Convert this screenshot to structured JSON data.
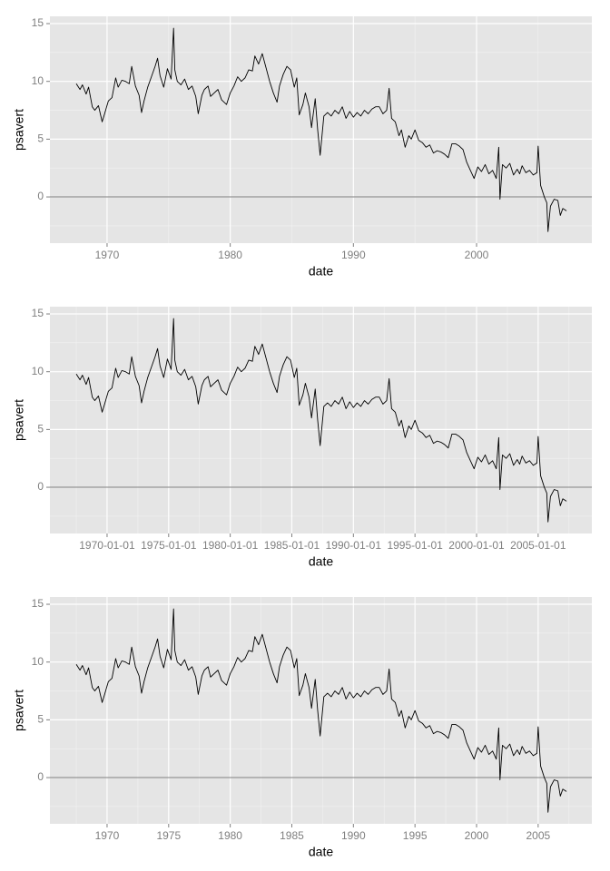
{
  "chart_data": [
    {
      "type": "line",
      "xlabel": "date",
      "ylabel": "psavert",
      "xlim": [
        1965.36,
        2009.36
      ],
      "ylim": [
        -4,
        15.63
      ],
      "xticks": [
        1970,
        1980,
        1990,
        2000
      ],
      "yticks": [
        0,
        5,
        10,
        15
      ],
      "grid": true,
      "hline": 0,
      "series": [
        {
          "name": "psavert",
          "color": "#000000",
          "x": [
            1967.5,
            1967.8,
            1968.0,
            1968.3,
            1968.5,
            1968.8,
            1969.0,
            1969.3,
            1969.6,
            1969.8,
            1970.1,
            1970.4,
            1970.7,
            1970.9,
            1971.2,
            1971.5,
            1971.8,
            1972.0,
            1972.3,
            1972.6,
            1972.8,
            1973.0,
            1973.3,
            1973.6,
            1973.9,
            1974.1,
            1974.3,
            1974.6,
            1974.9,
            1975.2,
            1975.4,
            1975.5,
            1975.7,
            1976.0,
            1976.3,
            1976.6,
            1976.9,
            1977.2,
            1977.4,
            1977.7,
            1977.9,
            1978.2,
            1978.4,
            1978.7,
            1979.0,
            1979.3,
            1979.7,
            1980.0,
            1980.3,
            1980.6,
            1980.9,
            1981.2,
            1981.5,
            1981.8,
            1982.0,
            1982.3,
            1982.6,
            1982.9,
            1983.2,
            1983.5,
            1983.8,
            1984.0,
            1984.3,
            1984.6,
            1984.9,
            1985.2,
            1985.4,
            1985.6,
            1985.9,
            1986.1,
            1986.4,
            1986.6,
            1986.9,
            1987.1,
            1987.3,
            1987.6,
            1987.9,
            1988.2,
            1988.5,
            1988.8,
            1989.1,
            1989.4,
            1989.7,
            1990.0,
            1990.3,
            1990.6,
            1990.9,
            1991.2,
            1991.5,
            1991.8,
            1992.1,
            1992.4,
            1992.7,
            1992.9,
            1993.1,
            1993.4,
            1993.7,
            1993.9,
            1994.2,
            1994.5,
            1994.7,
            1995.0,
            1995.3,
            1995.6,
            1995.9,
            1996.2,
            1996.5,
            1996.8,
            1997.1,
            1997.4,
            1997.7,
            1998.0,
            1998.3,
            1998.6,
            1998.9,
            1999.2,
            1999.5,
            1999.8,
            2000.1,
            2000.4,
            2000.7,
            2001.0,
            2001.3,
            2001.6,
            2001.8,
            2001.9,
            2002.1,
            2002.4,
            2002.7,
            2003.0,
            2003.3,
            2003.5,
            2003.7,
            2004.0,
            2004.3,
            2004.6,
            2004.9,
            2005.0,
            2005.2,
            2005.5,
            2005.7,
            2005.8,
            2006.0,
            2006.3,
            2006.6,
            2006.8,
            2007.0,
            2007.3
          ],
          "values": [
            9.8,
            9.3,
            9.7,
            8.9,
            9.5,
            7.8,
            7.5,
            7.9,
            6.5,
            7.2,
            8.3,
            8.6,
            10.3,
            9.5,
            10.1,
            10.0,
            9.8,
            11.3,
            9.6,
            8.8,
            7.3,
            8.3,
            9.5,
            10.4,
            11.3,
            12.0,
            10.5,
            9.5,
            11.1,
            10.2,
            14.6,
            11.0,
            10.0,
            9.7,
            10.2,
            9.3,
            9.6,
            8.7,
            7.2,
            8.8,
            9.3,
            9.6,
            8.7,
            9.0,
            9.3,
            8.4,
            8.0,
            9.0,
            9.6,
            10.4,
            10.0,
            10.3,
            11.0,
            10.9,
            12.2,
            11.5,
            12.4,
            11.2,
            10.0,
            9.0,
            8.2,
            9.6,
            10.6,
            11.3,
            11.0,
            9.5,
            10.3,
            7.1,
            8.0,
            9.0,
            7.8,
            6.0,
            8.5,
            5.8,
            3.6,
            7.0,
            7.3,
            7.0,
            7.5,
            7.2,
            7.8,
            6.8,
            7.4,
            6.9,
            7.3,
            7.0,
            7.5,
            7.2,
            7.6,
            7.8,
            7.8,
            7.2,
            7.5,
            9.4,
            6.8,
            6.5,
            5.3,
            5.8,
            4.3,
            5.3,
            5.0,
            5.8,
            4.9,
            4.7,
            4.3,
            4.5,
            3.8,
            4.0,
            3.9,
            3.7,
            3.4,
            4.6,
            4.6,
            4.4,
            4.1,
            3.0,
            2.3,
            1.6,
            2.6,
            2.2,
            2.8,
            2.0,
            2.3,
            1.6,
            4.3,
            -0.2,
            2.8,
            2.5,
            2.9,
            1.9,
            2.4,
            2.0,
            2.7,
            2.1,
            2.3,
            1.9,
            2.1,
            4.4,
            1.0,
            0.0,
            -0.5,
            -3.0,
            -0.8,
            -0.2,
            -0.3,
            -1.6,
            -1.0,
            -1.2
          ]
        }
      ]
    },
    {
      "type": "line",
      "xlabel": "date",
      "ylabel": "psavert",
      "xlim": [
        1965.36,
        2009.36
      ],
      "ylim": [
        -4,
        15.63
      ],
      "xticks": [
        {
          "value": 1970,
          "label": "1970-01-01"
        },
        {
          "value": 1975,
          "label": "1975-01-01"
        },
        {
          "value": 1980,
          "label": "1980-01-01"
        },
        {
          "value": 1985,
          "label": "1985-01-01"
        },
        {
          "value": 1990,
          "label": "1990-01-01"
        },
        {
          "value": 1995,
          "label": "1995-01-01"
        },
        {
          "value": 2000,
          "label": "2000-01-01"
        },
        {
          "value": 2005,
          "label": "2005-01-01"
        }
      ],
      "yticks": [
        0,
        5,
        10,
        15
      ],
      "grid": true,
      "hline": 0,
      "series": [
        {
          "name": "psavert",
          "color": "#000000",
          "x": [
            1967.5,
            1967.8,
            1968.0,
            1968.3,
            1968.5,
            1968.8,
            1969.0,
            1969.3,
            1969.6,
            1969.8,
            1970.1,
            1970.4,
            1970.7,
            1970.9,
            1971.2,
            1971.5,
            1971.8,
            1972.0,
            1972.3,
            1972.6,
            1972.8,
            1973.0,
            1973.3,
            1973.6,
            1973.9,
            1974.1,
            1974.3,
            1974.6,
            1974.9,
            1975.2,
            1975.4,
            1975.5,
            1975.7,
            1976.0,
            1976.3,
            1976.6,
            1976.9,
            1977.2,
            1977.4,
            1977.7,
            1977.9,
            1978.2,
            1978.4,
            1978.7,
            1979.0,
            1979.3,
            1979.7,
            1980.0,
            1980.3,
            1980.6,
            1980.9,
            1981.2,
            1981.5,
            1981.8,
            1982.0,
            1982.3,
            1982.6,
            1982.9,
            1983.2,
            1983.5,
            1983.8,
            1984.0,
            1984.3,
            1984.6,
            1984.9,
            1985.2,
            1985.4,
            1985.6,
            1985.9,
            1986.1,
            1986.4,
            1986.6,
            1986.9,
            1987.1,
            1987.3,
            1987.6,
            1987.9,
            1988.2,
            1988.5,
            1988.8,
            1989.1,
            1989.4,
            1989.7,
            1990.0,
            1990.3,
            1990.6,
            1990.9,
            1991.2,
            1991.5,
            1991.8,
            1992.1,
            1992.4,
            1992.7,
            1992.9,
            1993.1,
            1993.4,
            1993.7,
            1993.9,
            1994.2,
            1994.5,
            1994.7,
            1995.0,
            1995.3,
            1995.6,
            1995.9,
            1996.2,
            1996.5,
            1996.8,
            1997.1,
            1997.4,
            1997.7,
            1998.0,
            1998.3,
            1998.6,
            1998.9,
            1999.2,
            1999.5,
            1999.8,
            2000.1,
            2000.4,
            2000.7,
            2001.0,
            2001.3,
            2001.6,
            2001.8,
            2001.9,
            2002.1,
            2002.4,
            2002.7,
            2003.0,
            2003.3,
            2003.5,
            2003.7,
            2004.0,
            2004.3,
            2004.6,
            2004.9,
            2005.0,
            2005.2,
            2005.5,
            2005.7,
            2005.8,
            2006.0,
            2006.3,
            2006.6,
            2006.8,
            2007.0,
            2007.3
          ],
          "values": [
            9.8,
            9.3,
            9.7,
            8.9,
            9.5,
            7.8,
            7.5,
            7.9,
            6.5,
            7.2,
            8.3,
            8.6,
            10.3,
            9.5,
            10.1,
            10.0,
            9.8,
            11.3,
            9.6,
            8.8,
            7.3,
            8.3,
            9.5,
            10.4,
            11.3,
            12.0,
            10.5,
            9.5,
            11.1,
            10.2,
            14.6,
            11.0,
            10.0,
            9.7,
            10.2,
            9.3,
            9.6,
            8.7,
            7.2,
            8.8,
            9.3,
            9.6,
            8.7,
            9.0,
            9.3,
            8.4,
            8.0,
            9.0,
            9.6,
            10.4,
            10.0,
            10.3,
            11.0,
            10.9,
            12.2,
            11.5,
            12.4,
            11.2,
            10.0,
            9.0,
            8.2,
            9.6,
            10.6,
            11.3,
            11.0,
            9.5,
            10.3,
            7.1,
            8.0,
            9.0,
            7.8,
            6.0,
            8.5,
            5.8,
            3.6,
            7.0,
            7.3,
            7.0,
            7.5,
            7.2,
            7.8,
            6.8,
            7.4,
            6.9,
            7.3,
            7.0,
            7.5,
            7.2,
            7.6,
            7.8,
            7.8,
            7.2,
            7.5,
            9.4,
            6.8,
            6.5,
            5.3,
            5.8,
            4.3,
            5.3,
            5.0,
            5.8,
            4.9,
            4.7,
            4.3,
            4.5,
            3.8,
            4.0,
            3.9,
            3.7,
            3.4,
            4.6,
            4.6,
            4.4,
            4.1,
            3.0,
            2.3,
            1.6,
            2.6,
            2.2,
            2.8,
            2.0,
            2.3,
            1.6,
            4.3,
            -0.2,
            2.8,
            2.5,
            2.9,
            1.9,
            2.4,
            2.0,
            2.7,
            2.1,
            2.3,
            1.9,
            2.1,
            4.4,
            1.0,
            0.0,
            -0.5,
            -3.0,
            -0.8,
            -0.2,
            -0.3,
            -1.6,
            -1.0,
            -1.2
          ]
        }
      ]
    },
    {
      "type": "line",
      "xlabel": "date",
      "ylabel": "psavert",
      "xlim": [
        1965.36,
        2009.36
      ],
      "ylim": [
        -4,
        15.63
      ],
      "xticks": [
        1970,
        1975,
        1980,
        1985,
        1990,
        1995,
        2000,
        2005
      ],
      "yticks": [
        0,
        5,
        10,
        15
      ],
      "grid": true,
      "hline": 0,
      "series": [
        {
          "name": "psavert",
          "color": "#000000",
          "x": [
            1967.5,
            1967.8,
            1968.0,
            1968.3,
            1968.5,
            1968.8,
            1969.0,
            1969.3,
            1969.6,
            1969.8,
            1970.1,
            1970.4,
            1970.7,
            1970.9,
            1971.2,
            1971.5,
            1971.8,
            1972.0,
            1972.3,
            1972.6,
            1972.8,
            1973.0,
            1973.3,
            1973.6,
            1973.9,
            1974.1,
            1974.3,
            1974.6,
            1974.9,
            1975.2,
            1975.4,
            1975.5,
            1975.7,
            1976.0,
            1976.3,
            1976.6,
            1976.9,
            1977.2,
            1977.4,
            1977.7,
            1977.9,
            1978.2,
            1978.4,
            1978.7,
            1979.0,
            1979.3,
            1979.7,
            1980.0,
            1980.3,
            1980.6,
            1980.9,
            1981.2,
            1981.5,
            1981.8,
            1982.0,
            1982.3,
            1982.6,
            1982.9,
            1983.2,
            1983.5,
            1983.8,
            1984.0,
            1984.3,
            1984.6,
            1984.9,
            1985.2,
            1985.4,
            1985.6,
            1985.9,
            1986.1,
            1986.4,
            1986.6,
            1986.9,
            1987.1,
            1987.3,
            1987.6,
            1987.9,
            1988.2,
            1988.5,
            1988.8,
            1989.1,
            1989.4,
            1989.7,
            1990.0,
            1990.3,
            1990.6,
            1990.9,
            1991.2,
            1991.5,
            1991.8,
            1992.1,
            1992.4,
            1992.7,
            1992.9,
            1993.1,
            1993.4,
            1993.7,
            1993.9,
            1994.2,
            1994.5,
            1994.7,
            1995.0,
            1995.3,
            1995.6,
            1995.9,
            1996.2,
            1996.5,
            1996.8,
            1997.1,
            1997.4,
            1997.7,
            1998.0,
            1998.3,
            1998.6,
            1998.9,
            1999.2,
            1999.5,
            1999.8,
            2000.1,
            2000.4,
            2000.7,
            2001.0,
            2001.3,
            2001.6,
            2001.8,
            2001.9,
            2002.1,
            2002.4,
            2002.7,
            2003.0,
            2003.3,
            2003.5,
            2003.7,
            2004.0,
            2004.3,
            2004.6,
            2004.9,
            2005.0,
            2005.2,
            2005.5,
            2005.7,
            2005.8,
            2006.0,
            2006.3,
            2006.6,
            2006.8,
            2007.0,
            2007.3
          ],
          "values": [
            9.8,
            9.3,
            9.7,
            8.9,
            9.5,
            7.8,
            7.5,
            7.9,
            6.5,
            7.2,
            8.3,
            8.6,
            10.3,
            9.5,
            10.1,
            10.0,
            9.8,
            11.3,
            9.6,
            8.8,
            7.3,
            8.3,
            9.5,
            10.4,
            11.3,
            12.0,
            10.5,
            9.5,
            11.1,
            10.2,
            14.6,
            11.0,
            10.0,
            9.7,
            10.2,
            9.3,
            9.6,
            8.7,
            7.2,
            8.8,
            9.3,
            9.6,
            8.7,
            9.0,
            9.3,
            8.4,
            8.0,
            9.0,
            9.6,
            10.4,
            10.0,
            10.3,
            11.0,
            10.9,
            12.2,
            11.5,
            12.4,
            11.2,
            10.0,
            9.0,
            8.2,
            9.6,
            10.6,
            11.3,
            11.0,
            9.5,
            10.3,
            7.1,
            8.0,
            9.0,
            7.8,
            6.0,
            8.5,
            5.8,
            3.6,
            7.0,
            7.3,
            7.0,
            7.5,
            7.2,
            7.8,
            6.8,
            7.4,
            6.9,
            7.3,
            7.0,
            7.5,
            7.2,
            7.6,
            7.8,
            7.8,
            7.2,
            7.5,
            9.4,
            6.8,
            6.5,
            5.3,
            5.8,
            4.3,
            5.3,
            5.0,
            5.8,
            4.9,
            4.7,
            4.3,
            4.5,
            3.8,
            4.0,
            3.9,
            3.7,
            3.4,
            4.6,
            4.6,
            4.4,
            4.1,
            3.0,
            2.3,
            1.6,
            2.6,
            2.2,
            2.8,
            2.0,
            2.3,
            1.6,
            4.3,
            -0.2,
            2.8,
            2.5,
            2.9,
            1.9,
            2.4,
            2.0,
            2.7,
            2.1,
            2.3,
            1.9,
            2.1,
            4.4,
            1.0,
            0.0,
            -0.5,
            -3.0,
            -0.8,
            -0.2,
            -0.3,
            -1.6,
            -1.0,
            -1.2
          ]
        }
      ]
    }
  ]
}
